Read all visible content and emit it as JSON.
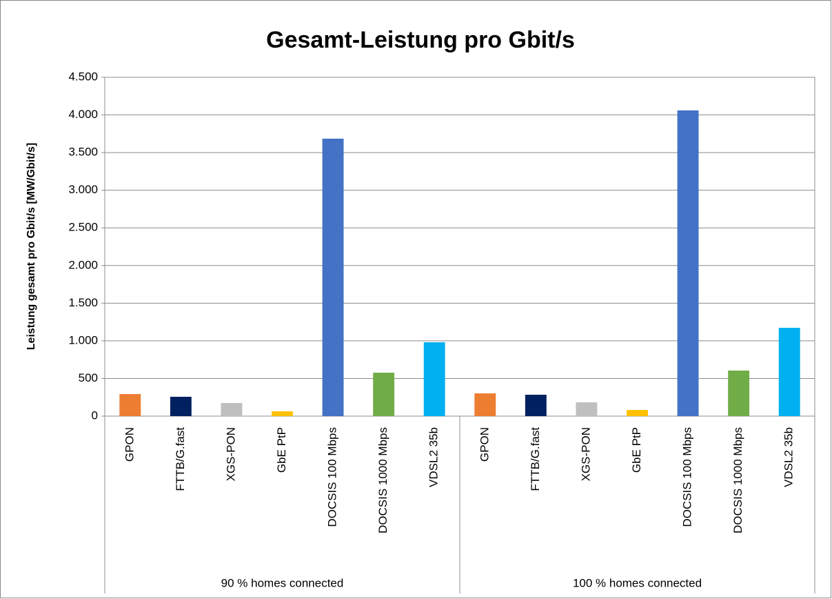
{
  "chart_data": {
    "type": "bar",
    "title": "Gesamt-Leistung pro Gbit/s",
    "y_label": "Leistung gesamt  pro Gbit/s [MW/Gbit/s]",
    "colors": [
      "#ed7d31",
      "#002060",
      "#bfbfbf",
      "#ffc000",
      "#4472c4",
      "#70ad47",
      "#00b0f0"
    ],
    "groups": [
      {
        "name": "90 % homes connected",
        "categories": [
          "GPON",
          "FTTB/G.fast",
          "XGS-PON",
          "GbE PtP",
          "DOCSIS 100 Mbps",
          "DOCSIS 1000 Mbps",
          "VDSL2 35b"
        ],
        "values": [
          293,
          257,
          174,
          64,
          3685,
          577,
          981
        ]
      },
      {
        "name": "100 % homes connected",
        "categories": [
          "GPON",
          "FTTB/G.fast",
          "XGS-PON",
          "GbE PtP",
          "DOCSIS 100 Mbps",
          "DOCSIS 1000 Mbps",
          "VDSL2 35b"
        ],
        "values": [
          302,
          284,
          183,
          82,
          4060,
          605,
          1173
        ]
      }
    ],
    "ylim": [
      0,
      4500
    ],
    "yticks": [
      0,
      500,
      {
        "value": 1000,
        "label": "1.000"
      },
      {
        "value": 1500,
        "label": "1.500"
      },
      {
        "value": 2000,
        "label": "2.000"
      },
      {
        "value": 2500,
        "label": "2.500"
      },
      {
        "value": 3000,
        "label": "3.000"
      },
      {
        "value": 3500,
        "label": "3.500"
      },
      {
        "value": 4000,
        "label": "4.000"
      },
      {
        "value": 4500,
        "label": "4.500"
      }
    ],
    "grid": true
  }
}
